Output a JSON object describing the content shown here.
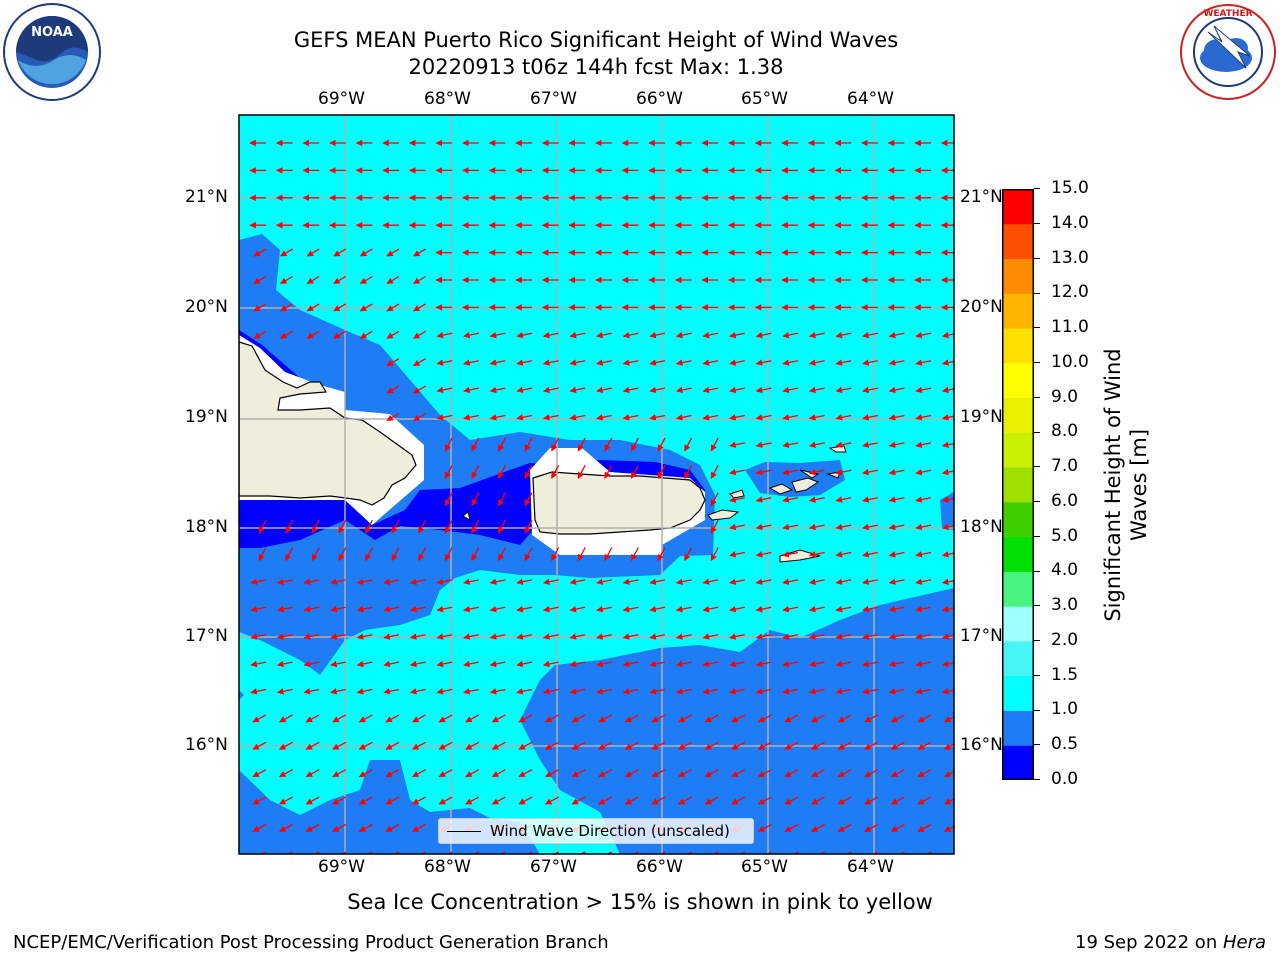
{
  "header": {
    "title_line1": "GEFS MEAN Puerto Rico Significant Height of Wind Waves",
    "title_line2": "20220913 t06z 144h fcst   Max: 1.38"
  },
  "logos": {
    "left": "NOAA",
    "right": "NATIONAL WEATHER SERVICE"
  },
  "map": {
    "lon_labels": [
      "69°W",
      "68°W",
      "67°W",
      "66°W",
      "65°W",
      "64°W"
    ],
    "lat_labels": [
      "21°N",
      "20°N",
      "19°N",
      "18°N",
      "17°N",
      "16°N"
    ],
    "legend_label": "Wind Wave Direction (unscaled)",
    "arrow_color": "#ff0000",
    "coast_color": "#000000",
    "land_color": "#efeedd"
  },
  "colorbar": {
    "title": "Significant Height of Wind Waves [m]",
    "title_line1": "Significant Height of Wind",
    "title_line2": "Waves [m]",
    "ticks": [
      "15.0",
      "14.0",
      "13.0",
      "12.0",
      "11.0",
      "10.0",
      "9.0",
      "8.0",
      "7.0",
      "6.0",
      "5.0",
      "4.0",
      "3.0",
      "2.0",
      "1.5",
      "1.0",
      "0.5",
      "0.0"
    ],
    "levels": [
      0.0,
      0.5,
      1.0,
      1.5,
      2.0,
      3.0,
      4.0,
      5.0,
      6.0,
      7.0,
      8.0,
      9.0,
      10.0,
      11.0,
      12.0,
      13.0,
      14.0,
      15.0
    ],
    "colors": [
      "#0000ff",
      "#1e7cf5",
      "#00ffff",
      "#48f5f5",
      "#a0ffff",
      "#48f580",
      "#00e000",
      "#40d000",
      "#a0e000",
      "#c8f000",
      "#e8f000",
      "#ffff00",
      "#ffe000",
      "#ffb400",
      "#ff8c00",
      "#ff5000",
      "#ff0000"
    ]
  },
  "chart_data": {
    "type": "heatmap",
    "title": "GEFS MEAN Puerto Rico Significant Height of Wind Waves",
    "subtitle": "20220913 t06z 144h fcst   Max: 1.38",
    "xlabel": "",
    "ylabel": "",
    "x_ticks": [
      "69°W",
      "68°W",
      "67°W",
      "66°W",
      "65°W",
      "64°W"
    ],
    "y_ticks": [
      "21°N",
      "20°N",
      "19°N",
      "18°N",
      "17°N",
      "16°N"
    ],
    "colorbar_label": "Significant Height of Wind Waves [m]",
    "colorbar_range": [
      0.0,
      15.0
    ],
    "max_value": 1.38,
    "units": "m",
    "grid": true,
    "legend": "bottom-center"
  },
  "caption": "Sea Ice Concentration > 15% is shown in pink to yellow",
  "footer": {
    "left": "NCEP/EMC/Verification Post Processing Product Generation Branch",
    "right_prefix": "19 Sep 2022 on ",
    "right_machine": "Hera"
  }
}
